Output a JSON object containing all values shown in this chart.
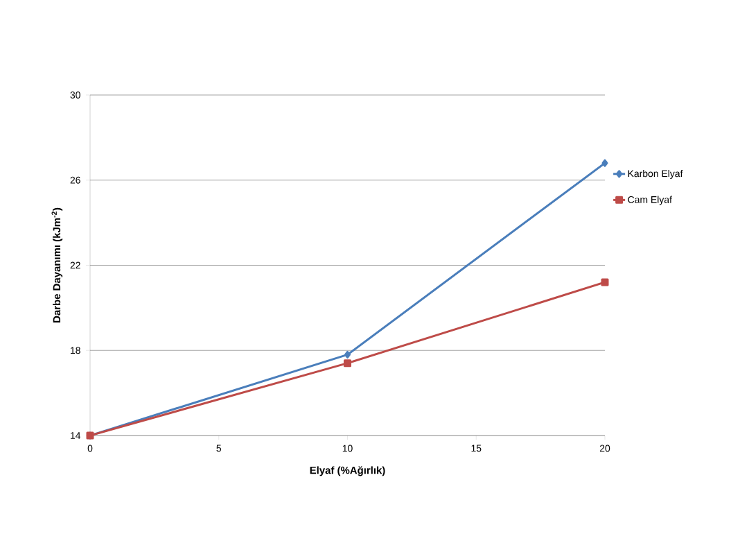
{
  "chart_data": {
    "type": "line",
    "xlabel": "Elyaf (%Ağırlık)",
    "ylabel": "Darbe Dayanımı (kJm$^{-2}$)",
    "x": [
      0,
      10,
      20
    ],
    "series": [
      {
        "name": "Karbon Elyaf",
        "color": "#4a7ebb",
        "marker": "diamond",
        "values": [
          14.0,
          17.8,
          26.8
        ]
      },
      {
        "name": "Cam Elyaf",
        "color": "#be4b48",
        "marker": "square",
        "values": [
          14.0,
          17.4,
          21.2
        ]
      }
    ],
    "xlim": [
      0,
      20
    ],
    "xticks": [
      0,
      5,
      10,
      15,
      20
    ],
    "ylim": [
      14,
      30
    ],
    "yticks": [
      14,
      18,
      22,
      26,
      30
    ],
    "grid": "y",
    "legend": "right",
    "line_style": "solid"
  }
}
